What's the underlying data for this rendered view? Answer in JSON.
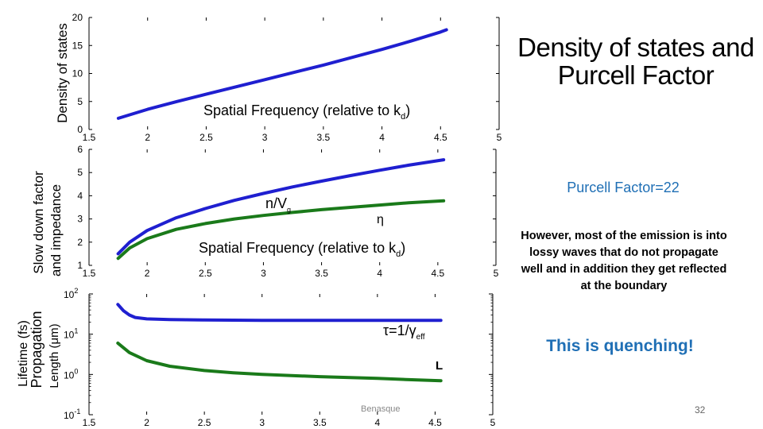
{
  "slide": {
    "title": "Density of states and Purcell Factor",
    "purcell_text": "Purcell Factor=22",
    "note_text": "However, most of the emission is into lossy waves that do not propagate well and in addition they get reflected at the boundary",
    "quench_text": "This is quenching!",
    "footer_left": "Benasque",
    "page_number": "32",
    "accent_color": "#1f6fb5"
  },
  "chart_data": [
    {
      "type": "line",
      "title": "",
      "xlabel": "Spatial Frequency (relative to kd)",
      "xlabel_main": "Spatial Frequency (relative to k",
      "xlabel_sub": "d",
      "xlabel_end": ")",
      "ylabel": "Density of states",
      "xlim": [
        1.5,
        5
      ],
      "ylim": [
        0,
        20
      ],
      "x_ticks": [
        "1.5",
        "2",
        "2.5",
        "3",
        "3.5",
        "4",
        "4.5",
        "5"
      ],
      "y_ticks": [
        "0",
        "5",
        "10",
        "15",
        "20"
      ],
      "series": [
        {
          "name": "Density of states",
          "color": "#1f1fd0",
          "x": [
            1.75,
            2.0,
            2.25,
            2.5,
            2.75,
            3.0,
            3.25,
            3.5,
            3.75,
            4.0,
            4.25,
            4.5,
            4.55
          ],
          "values": [
            2.0,
            3.6,
            5.0,
            6.3,
            7.6,
            8.9,
            10.2,
            11.5,
            12.9,
            14.3,
            15.8,
            17.4,
            17.8
          ]
        }
      ]
    },
    {
      "type": "line",
      "title": "",
      "xlabel": "Spatial Frequency (relative to kd)",
      "xlabel_main": "Spatial Frequency (relative to k",
      "xlabel_sub": "d",
      "xlabel_end": ")",
      "ylabel_line1": "Slow down factor",
      "ylabel_line2": "and impedance",
      "xlim": [
        1.5,
        5
      ],
      "ylim": [
        1,
        6
      ],
      "x_ticks": [
        "1.5",
        "2",
        "2.5",
        "3",
        "3.5",
        "4",
        "4.5",
        "5"
      ],
      "y_ticks": [
        "1",
        "2",
        "3",
        "4",
        "5",
        "6"
      ],
      "annotations": {
        "blue_main": "n/V",
        "blue_sub": "g",
        "green": "η"
      },
      "series": [
        {
          "name": "n/Vg",
          "color": "#1f1fd0",
          "x": [
            1.75,
            1.85,
            2.0,
            2.25,
            2.5,
            2.75,
            3.0,
            3.25,
            3.5,
            3.75,
            4.0,
            4.25,
            4.55
          ],
          "values": [
            1.5,
            2.0,
            2.5,
            3.05,
            3.45,
            3.8,
            4.1,
            4.38,
            4.63,
            4.87,
            5.1,
            5.32,
            5.55
          ]
        },
        {
          "name": "η",
          "color": "#1a7a1a",
          "x": [
            1.75,
            1.85,
            2.0,
            2.25,
            2.5,
            2.75,
            3.0,
            3.25,
            3.5,
            3.75,
            4.0,
            4.25,
            4.55
          ],
          "values": [
            1.3,
            1.75,
            2.15,
            2.55,
            2.8,
            3.0,
            3.15,
            3.28,
            3.4,
            3.5,
            3.6,
            3.7,
            3.78
          ]
        }
      ]
    },
    {
      "type": "line",
      "title": "",
      "xlabel": "",
      "ylabel_line1": "Lifetime (fs)",
      "ylabel_line2": "Propagation",
      "ylabel_line3": "Length (μm)",
      "y_scale": "log",
      "xlim": [
        1.5,
        5
      ],
      "ylim": [
        0.1,
        100
      ],
      "x_ticks": [
        "1.5",
        "2",
        "2.5",
        "3",
        "3.5",
        "4",
        "4.5",
        "5"
      ],
      "y_ticks": [
        {
          "base": "10",
          "exp": "-1"
        },
        {
          "base": "10",
          "exp": "0"
        },
        {
          "base": "10",
          "exp": "1"
        },
        {
          "base": "10",
          "exp": "2"
        }
      ],
      "annotations": {
        "tau_text": "τ=1/γ",
        "tau_sub": "eff",
        "L_text": "L"
      },
      "series": [
        {
          "name": "τ=1/γeff",
          "color": "#1f1fd0",
          "x": [
            1.75,
            1.8,
            1.85,
            1.9,
            2.0,
            2.2,
            2.5,
            3.0,
            3.5,
            4.0,
            4.5,
            4.55
          ],
          "values": [
            55,
            38,
            30,
            26,
            24,
            23,
            22.5,
            22,
            22,
            22,
            22,
            22
          ]
        },
        {
          "name": "L",
          "color": "#1a7a1a",
          "x": [
            1.75,
            1.85,
            2.0,
            2.2,
            2.5,
            2.75,
            3.0,
            3.5,
            4.0,
            4.25,
            4.55
          ],
          "values": [
            6.0,
            3.5,
            2.2,
            1.6,
            1.25,
            1.1,
            1.0,
            0.88,
            0.8,
            0.75,
            0.7
          ]
        }
      ]
    }
  ]
}
